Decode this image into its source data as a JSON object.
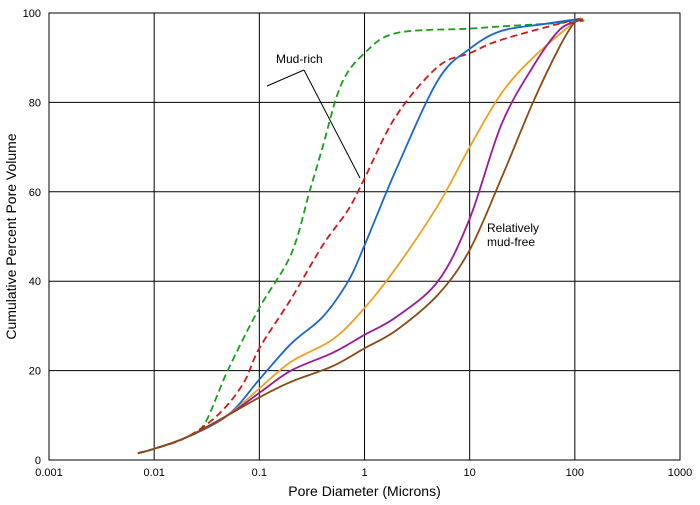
{
  "chart_data": {
    "type": "line",
    "xlabel": "Pore Diameter (Microns)",
    "ylabel": "Cumulative Percent Pore Volume",
    "x_scale": "log",
    "xlim": [
      0.001,
      1000
    ],
    "ylim": [
      0,
      100
    ],
    "x_ticks": [
      "0.001",
      "0.01",
      "0.1",
      "1",
      "10",
      "100",
      "1000"
    ],
    "y_ticks": [
      "0",
      "20",
      "40",
      "60",
      "80",
      "100"
    ],
    "grid": true,
    "annotations": {
      "mud_rich": "Mud-rich",
      "mud_free_line1": "Relatively",
      "mud_free_line2": "mud-free"
    },
    "series": [
      {
        "color": "#1a9e1a",
        "dash": true,
        "points": [
          [
            0.007,
            1.5
          ],
          [
            0.01,
            2.5
          ],
          [
            0.02,
            5
          ],
          [
            0.03,
            8
          ],
          [
            0.05,
            20
          ],
          [
            0.1,
            34
          ],
          [
            0.2,
            46
          ],
          [
            0.3,
            60
          ],
          [
            0.4,
            70
          ],
          [
            0.6,
            84
          ],
          [
            1,
            91
          ],
          [
            2,
            95.5
          ],
          [
            10,
            96.5
          ],
          [
            20,
            97
          ],
          [
            100,
            98
          ],
          [
            120,
            98.5
          ]
        ]
      },
      {
        "color": "#cc1a1a",
        "dash": true,
        "points": [
          [
            0.007,
            1.5
          ],
          [
            0.01,
            2.5
          ],
          [
            0.02,
            5
          ],
          [
            0.04,
            10
          ],
          [
            0.07,
            17
          ],
          [
            0.1,
            25
          ],
          [
            0.2,
            36
          ],
          [
            0.4,
            48
          ],
          [
            0.7,
            56
          ],
          [
            1,
            63
          ],
          [
            2,
            77
          ],
          [
            5,
            88
          ],
          [
            10,
            91
          ],
          [
            20,
            94
          ],
          [
            100,
            98.5
          ],
          [
            120,
            98.5
          ]
        ]
      },
      {
        "color": "#1a66cc",
        "dash": false,
        "points": [
          [
            0.007,
            1.5
          ],
          [
            0.01,
            2.5
          ],
          [
            0.02,
            5
          ],
          [
            0.05,
            10
          ],
          [
            0.1,
            18
          ],
          [
            0.2,
            26
          ],
          [
            0.4,
            32
          ],
          [
            0.7,
            40
          ],
          [
            1,
            48
          ],
          [
            2,
            65
          ],
          [
            5,
            85
          ],
          [
            10,
            92
          ],
          [
            20,
            96
          ],
          [
            50,
            97.5
          ],
          [
            100,
            98.5
          ],
          [
            120,
            98.5
          ]
        ]
      },
      {
        "color": "#f0a020",
        "dash": false,
        "points": [
          [
            0.007,
            1.5
          ],
          [
            0.01,
            2.5
          ],
          [
            0.02,
            5
          ],
          [
            0.05,
            10
          ],
          [
            0.1,
            16
          ],
          [
            0.2,
            22
          ],
          [
            0.5,
            27
          ],
          [
            1,
            34
          ],
          [
            2,
            43
          ],
          [
            5,
            57
          ],
          [
            10,
            70
          ],
          [
            20,
            82
          ],
          [
            40,
            90
          ],
          [
            100,
            98
          ],
          [
            120,
            98.5
          ]
        ]
      },
      {
        "color": "#9a1a9a",
        "dash": false,
        "points": [
          [
            0.007,
            1.5
          ],
          [
            0.01,
            2.5
          ],
          [
            0.02,
            5
          ],
          [
            0.05,
            10
          ],
          [
            0.1,
            15
          ],
          [
            0.2,
            20
          ],
          [
            0.5,
            24
          ],
          [
            1,
            28
          ],
          [
            2,
            32
          ],
          [
            5,
            40
          ],
          [
            10,
            54
          ],
          [
            20,
            75
          ],
          [
            40,
            88
          ],
          [
            70,
            96
          ],
          [
            100,
            98
          ],
          [
            120,
            98.5
          ]
        ]
      },
      {
        "color": "#8a4a12",
        "dash": false,
        "points": [
          [
            0.007,
            1.5
          ],
          [
            0.01,
            2.5
          ],
          [
            0.02,
            5
          ],
          [
            0.05,
            10
          ],
          [
            0.1,
            14
          ],
          [
            0.2,
            17.5
          ],
          [
            0.5,
            21
          ],
          [
            1,
            25
          ],
          [
            2,
            29
          ],
          [
            5,
            37
          ],
          [
            10,
            47
          ],
          [
            20,
            63
          ],
          [
            40,
            80
          ],
          [
            70,
            92
          ],
          [
            100,
            98
          ],
          [
            120,
            98.5
          ]
        ]
      }
    ]
  }
}
